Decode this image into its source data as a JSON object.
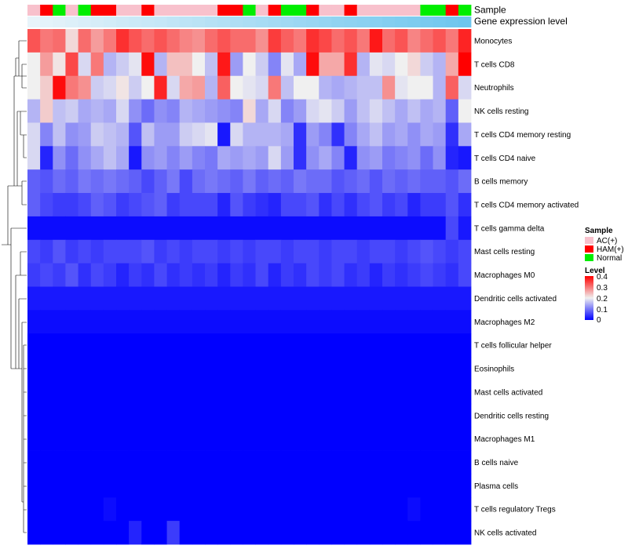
{
  "chart_data": {
    "type": "heatmap",
    "title": "",
    "annotation_rows": [
      {
        "label": "Sample",
        "values": [
          "AC(+)",
          "HAM(+)",
          "Normal",
          "AC(+)",
          "Normal",
          "HAM(+)",
          "HAM(+)",
          "AC(+)",
          "AC(+)",
          "HAM(+)",
          "AC(+)",
          "AC(+)",
          "AC(+)",
          "AC(+)",
          "AC(+)",
          "HAM(+)",
          "HAM(+)",
          "Normal",
          "AC(+)",
          "HAM(+)",
          "Normal",
          "Normal",
          "HAM(+)",
          "AC(+)",
          "AC(+)",
          "HAM(+)",
          "AC(+)",
          "AC(+)",
          "AC(+)",
          "AC(+)",
          "AC(+)",
          "Normal",
          "Normal",
          "HAM(+)",
          "Normal"
        ]
      },
      {
        "label": "Gene expression level",
        "values": [
          0.0,
          0.03,
          0.06,
          0.09,
          0.12,
          0.15,
          0.18,
          0.21,
          0.24,
          0.26,
          0.29,
          0.32,
          0.35,
          0.38,
          0.41,
          0.44,
          0.47,
          0.5,
          0.53,
          0.56,
          0.59,
          0.62,
          0.65,
          0.68,
          0.71,
          0.74,
          0.76,
          0.79,
          0.82,
          0.85,
          0.88,
          0.91,
          0.94,
          0.97,
          1.0
        ]
      }
    ],
    "rows": [
      "Monocytes",
      "T cells CD8",
      "Neutrophils",
      "NK cells resting",
      "T cells CD4 memory resting",
      "T cells CD4 naive",
      "B cells memory",
      "T cells CD4 memory activated",
      "T cells gamma delta",
      "Mast cells resting",
      "Macrophages M0",
      "Dendritic cells activated",
      "Macrophages M2",
      "T cells follicular helper",
      "Eosinophils",
      "Mast cells activated",
      "Dendritic cells resting",
      "Macrophages M1",
      "B cells naive",
      "Plasma cells",
      "T cells regulatory  Tregs",
      "NK cells activated"
    ],
    "values": [
      [
        0.33,
        0.3,
        0.31,
        0.22,
        0.31,
        0.27,
        0.3,
        0.36,
        0.33,
        0.31,
        0.33,
        0.31,
        0.29,
        0.28,
        0.31,
        0.33,
        0.31,
        0.31,
        0.28,
        0.35,
        0.32,
        0.3,
        0.36,
        0.34,
        0.31,
        0.33,
        0.3,
        0.38,
        0.31,
        0.33,
        0.29,
        0.31,
        0.33,
        0.3,
        0.37
      ],
      [
        0.2,
        0.27,
        0.21,
        0.34,
        0.18,
        0.3,
        0.15,
        0.17,
        0.19,
        0.39,
        0.15,
        0.24,
        0.24,
        0.2,
        0.16,
        0.38,
        0.13,
        0.2,
        0.17,
        0.11,
        0.19,
        0.14,
        0.39,
        0.26,
        0.26,
        0.36,
        0.15,
        0.19,
        0.18,
        0.2,
        0.22,
        0.17,
        0.15,
        0.26,
        0.4
      ],
      [
        0.2,
        0.23,
        0.39,
        0.3,
        0.28,
        0.17,
        0.18,
        0.21,
        0.17,
        0.2,
        0.37,
        0.18,
        0.26,
        0.27,
        0.15,
        0.32,
        0.2,
        0.19,
        0.18,
        0.3,
        0.16,
        0.2,
        0.2,
        0.15,
        0.14,
        0.15,
        0.16,
        0.16,
        0.28,
        0.19,
        0.2,
        0.2,
        0.15,
        0.32,
        0.18
      ],
      [
        0.15,
        0.23,
        0.16,
        0.17,
        0.14,
        0.15,
        0.14,
        0.18,
        0.12,
        0.09,
        0.12,
        0.11,
        0.15,
        0.14,
        0.13,
        0.12,
        0.11,
        0.22,
        0.14,
        0.18,
        0.11,
        0.13,
        0.18,
        0.19,
        0.17,
        0.13,
        0.16,
        0.18,
        0.16,
        0.14,
        0.16,
        0.14,
        0.15,
        0.08,
        0.2
      ],
      [
        0.18,
        0.11,
        0.16,
        0.12,
        0.13,
        0.17,
        0.16,
        0.15,
        0.07,
        0.16,
        0.13,
        0.13,
        0.17,
        0.18,
        0.19,
        0.02,
        0.18,
        0.15,
        0.15,
        0.15,
        0.14,
        0.04,
        0.13,
        0.11,
        0.04,
        0.11,
        0.14,
        0.16,
        0.13,
        0.14,
        0.12,
        0.14,
        0.13,
        0.04,
        0.14
      ],
      [
        0.18,
        0.03,
        0.12,
        0.09,
        0.12,
        0.14,
        0.16,
        0.14,
        0.02,
        0.12,
        0.13,
        0.11,
        0.13,
        0.11,
        0.1,
        0.14,
        0.13,
        0.14,
        0.13,
        0.18,
        0.13,
        0.04,
        0.12,
        0.14,
        0.11,
        0.03,
        0.12,
        0.13,
        0.1,
        0.11,
        0.12,
        0.09,
        0.12,
        0.03,
        0.02
      ],
      [
        0.08,
        0.07,
        0.09,
        0.08,
        0.1,
        0.09,
        0.1,
        0.09,
        0.08,
        0.06,
        0.08,
        0.1,
        0.06,
        0.09,
        0.1,
        0.09,
        0.08,
        0.1,
        0.08,
        0.09,
        0.08,
        0.1,
        0.09,
        0.09,
        0.07,
        0.08,
        0.09,
        0.07,
        0.09,
        0.08,
        0.09,
        0.08,
        0.08,
        0.07,
        0.09
      ],
      [
        0.08,
        0.06,
        0.05,
        0.05,
        0.06,
        0.08,
        0.07,
        0.05,
        0.06,
        0.07,
        0.08,
        0.05,
        0.06,
        0.06,
        0.06,
        0.03,
        0.07,
        0.05,
        0.04,
        0.03,
        0.06,
        0.06,
        0.07,
        0.04,
        0.06,
        0.04,
        0.06,
        0.07,
        0.05,
        0.06,
        0.03,
        0.05,
        0.05,
        0.07,
        0.04
      ],
      [
        0.01,
        0.01,
        0.01,
        0.01,
        0.01,
        0.01,
        0.01,
        0.01,
        0.01,
        0.01,
        0.01,
        0.01,
        0.01,
        0.01,
        0.01,
        0.01,
        0.01,
        0.01,
        0.01,
        0.01,
        0.01,
        0.01,
        0.01,
        0.01,
        0.01,
        0.01,
        0.01,
        0.01,
        0.01,
        0.01,
        0.01,
        0.01,
        0.01,
        0.06,
        0.02
      ],
      [
        0.06,
        0.05,
        0.07,
        0.05,
        0.06,
        0.05,
        0.06,
        0.06,
        0.06,
        0.07,
        0.05,
        0.06,
        0.05,
        0.06,
        0.06,
        0.05,
        0.06,
        0.05,
        0.06,
        0.06,
        0.05,
        0.06,
        0.06,
        0.05,
        0.06,
        0.06,
        0.05,
        0.06,
        0.06,
        0.05,
        0.06,
        0.07,
        0.06,
        0.05,
        0.06
      ],
      [
        0.05,
        0.06,
        0.05,
        0.07,
        0.04,
        0.06,
        0.05,
        0.03,
        0.05,
        0.04,
        0.06,
        0.04,
        0.05,
        0.04,
        0.05,
        0.03,
        0.05,
        0.04,
        0.06,
        0.03,
        0.05,
        0.04,
        0.06,
        0.05,
        0.06,
        0.04,
        0.05,
        0.03,
        0.05,
        0.04,
        0.05,
        0.06,
        0.05,
        0.04,
        0.06
      ],
      [
        0.02,
        0.02,
        0.02,
        0.02,
        0.02,
        0.02,
        0.02,
        0.02,
        0.02,
        0.02,
        0.02,
        0.02,
        0.02,
        0.02,
        0.02,
        0.02,
        0.02,
        0.02,
        0.02,
        0.02,
        0.02,
        0.02,
        0.02,
        0.02,
        0.02,
        0.02,
        0.02,
        0.02,
        0.02,
        0.02,
        0.02,
        0.02,
        0.02,
        0.02,
        0.02
      ],
      [
        0.01,
        0.01,
        0.01,
        0.01,
        0.01,
        0.01,
        0.01,
        0.01,
        0.01,
        0.01,
        0.01,
        0.01,
        0.01,
        0.01,
        0.01,
        0.01,
        0.01,
        0.01,
        0.01,
        0.01,
        0.01,
        0.01,
        0.01,
        0.01,
        0.01,
        0.01,
        0.01,
        0.01,
        0.01,
        0.01,
        0.01,
        0.01,
        0.01,
        0.01,
        0.01
      ],
      [
        0.0,
        0.0,
        0.0,
        0.0,
        0.0,
        0.0,
        0.0,
        0.0,
        0.0,
        0.0,
        0.0,
        0.0,
        0.0,
        0.0,
        0.0,
        0.0,
        0.0,
        0.0,
        0.0,
        0.0,
        0.0,
        0.0,
        0.0,
        0.0,
        0.0,
        0.0,
        0.0,
        0.0,
        0.0,
        0.0,
        0.0,
        0.0,
        0.0,
        0.0,
        0.0
      ],
      [
        0.0,
        0.0,
        0.0,
        0.0,
        0.0,
        0.0,
        0.0,
        0.0,
        0.0,
        0.0,
        0.0,
        0.0,
        0.0,
        0.0,
        0.0,
        0.0,
        0.0,
        0.0,
        0.0,
        0.0,
        0.0,
        0.0,
        0.0,
        0.0,
        0.0,
        0.0,
        0.0,
        0.0,
        0.0,
        0.0,
        0.0,
        0.0,
        0.0,
        0.0,
        0.0
      ],
      [
        0.0,
        0.0,
        0.0,
        0.0,
        0.0,
        0.0,
        0.0,
        0.0,
        0.0,
        0.0,
        0.0,
        0.0,
        0.0,
        0.0,
        0.0,
        0.0,
        0.0,
        0.0,
        0.0,
        0.0,
        0.0,
        0.0,
        0.0,
        0.0,
        0.0,
        0.0,
        0.0,
        0.0,
        0.0,
        0.0,
        0.0,
        0.0,
        0.0,
        0.0,
        0.0
      ],
      [
        0.0,
        0.0,
        0.0,
        0.0,
        0.0,
        0.0,
        0.0,
        0.0,
        0.0,
        0.0,
        0.0,
        0.0,
        0.0,
        0.0,
        0.0,
        0.0,
        0.0,
        0.0,
        0.0,
        0.0,
        0.0,
        0.0,
        0.0,
        0.0,
        0.0,
        0.0,
        0.0,
        0.0,
        0.0,
        0.0,
        0.0,
        0.0,
        0.0,
        0.0,
        0.0
      ],
      [
        0.0,
        0.0,
        0.0,
        0.0,
        0.0,
        0.0,
        0.0,
        0.0,
        0.0,
        0.0,
        0.0,
        0.0,
        0.0,
        0.0,
        0.0,
        0.0,
        0.0,
        0.0,
        0.0,
        0.0,
        0.0,
        0.0,
        0.0,
        0.0,
        0.0,
        0.0,
        0.0,
        0.0,
        0.0,
        0.0,
        0.0,
        0.0,
        0.0,
        0.0,
        0.0
      ],
      [
        0.0,
        0.0,
        0.0,
        0.0,
        0.0,
        0.0,
        0.0,
        0.0,
        0.0,
        0.0,
        0.0,
        0.0,
        0.0,
        0.0,
        0.0,
        0.0,
        0.0,
        0.0,
        0.0,
        0.0,
        0.0,
        0.0,
        0.0,
        0.0,
        0.0,
        0.0,
        0.0,
        0.0,
        0.0,
        0.0,
        0.0,
        0.0,
        0.0,
        0.0,
        0.0
      ],
      [
        0.0,
        0.0,
        0.0,
        0.0,
        0.0,
        0.0,
        0.0,
        0.0,
        0.0,
        0.0,
        0.0,
        0.0,
        0.0,
        0.0,
        0.0,
        0.0,
        0.0,
        0.0,
        0.0,
        0.0,
        0.0,
        0.0,
        0.0,
        0.0,
        0.0,
        0.0,
        0.0,
        0.0,
        0.0,
        0.0,
        0.0,
        0.0,
        0.0,
        0.0,
        0.0
      ],
      [
        0.0,
        0.0,
        0.0,
        0.0,
        0.0,
        0.0,
        0.01,
        0.0,
        0.0,
        0.0,
        0.0,
        0.0,
        0.0,
        0.0,
        0.0,
        0.0,
        0.0,
        0.0,
        0.0,
        0.0,
        0.0,
        0.0,
        0.0,
        0.0,
        0.0,
        0.0,
        0.0,
        0.0,
        0.0,
        0.0,
        0.01,
        0.0,
        0.0,
        0.0,
        0.0
      ],
      [
        0.0,
        0.0,
        0.0,
        0.0,
        0.0,
        0.0,
        0.0,
        0.0,
        0.03,
        0.0,
        0.0,
        0.05,
        0.0,
        0.0,
        0.0,
        0.0,
        0.0,
        0.0,
        0.0,
        0.0,
        0.0,
        0.0,
        0.0,
        0.0,
        0.0,
        0.0,
        0.0,
        0.0,
        0.0,
        0.0,
        0.0,
        0.0,
        0.0,
        0.0,
        0.0
      ]
    ],
    "color_scale": {
      "title": "Level",
      "ticks": [
        "0.4",
        "0.3",
        "0.2",
        "0.1",
        "0"
      ],
      "min": 0,
      "max": 0.4,
      "low": "#0000ff",
      "mid": "#f0f0f0",
      "high": "#ff0000"
    },
    "sample_legend": {
      "title": "Sample",
      "items": [
        {
          "label": "AC(+)",
          "color": "#f8c1cc"
        },
        {
          "label": "HAM(+)",
          "color": "#ff0000"
        },
        {
          "label": "Normal",
          "color": "#00ee00"
        }
      ]
    },
    "expression_bar": {
      "low": "#e8f4fa",
      "high": "#6ec6ee"
    }
  }
}
